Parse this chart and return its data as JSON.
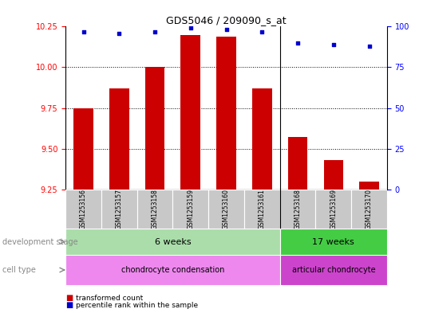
{
  "title": "GDS5046 / 209090_s_at",
  "samples": [
    "GSM1253156",
    "GSM1253157",
    "GSM1253158",
    "GSM1253159",
    "GSM1253160",
    "GSM1253161",
    "GSM1253168",
    "GSM1253169",
    "GSM1253170"
  ],
  "transformed_count": [
    9.75,
    9.87,
    10.0,
    10.2,
    10.19,
    9.87,
    9.57,
    9.43,
    9.3
  ],
  "percentile_rank": [
    97,
    96,
    97,
    99,
    98,
    97,
    90,
    89,
    88
  ],
  "ylim_left": [
    9.25,
    10.25
  ],
  "ylim_right": [
    0,
    100
  ],
  "yticks_left": [
    9.25,
    9.5,
    9.75,
    10.0,
    10.25
  ],
  "yticks_right": [
    0,
    25,
    50,
    75,
    100
  ],
  "bar_color": "#cc0000",
  "dot_color": "#0000cc",
  "bar_width": 0.55,
  "dev_stage_6weeks_label": "6 weeks",
  "dev_stage_17weeks_label": "17 weeks",
  "cell_type_chondro_label": "chondrocyte condensation",
  "cell_type_articular_label": "articular chondrocyte",
  "dev_stage_color_6": "#aaddaa",
  "dev_stage_color_17": "#44cc44",
  "cell_type_color_chondro": "#ee88ee",
  "cell_type_color_articular": "#cc44cc",
  "legend_bar_label": "transformed count",
  "legend_dot_label": "percentile rank within the sample",
  "split_index": 6,
  "grid_yticks": [
    9.5,
    9.75,
    10.0
  ],
  "xticklabel_bg": "#c8c8c8",
  "left_label_color": "#888888"
}
